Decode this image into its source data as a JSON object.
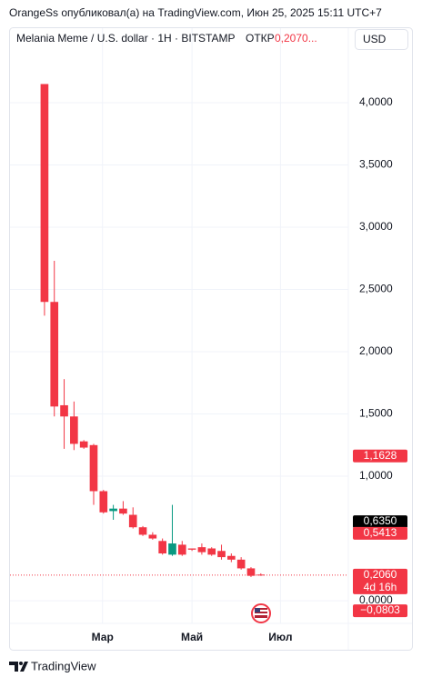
{
  "header": {
    "text": "OrangeSs опубликовал(а) на TradingView.com, Июн 25, 2025 15:11 UTC+7"
  },
  "symbol": {
    "name": "Melania Meme / U.S. dollar · 1H · BITSTAMP",
    "open_label": "ОТКР",
    "open_value": "0,2070..."
  },
  "currency": "USD",
  "footer": {
    "brand": "TradingView"
  },
  "chart_data": {
    "type": "candlestick",
    "up_color": "#089981",
    "down_color": "#f23645",
    "open": [
      4.15,
      2.4,
      1.57,
      1.48,
      1.28,
      1.25,
      0.88,
      0.72,
      0.74,
      0.69,
      0.59,
      0.53,
      0.48,
      0.37,
      0.45,
      0.42,
      0.43,
      0.42,
      0.4,
      0.36,
      0.33,
      0.26,
      0.21
    ],
    "high": [
      4.15,
      2.73,
      1.78,
      1.6,
      1.29,
      1.26,
      0.89,
      0.77,
      0.8,
      0.75,
      0.6,
      0.55,
      0.5,
      0.77,
      0.48,
      0.42,
      0.46,
      0.43,
      0.45,
      0.38,
      0.35,
      0.27,
      0.22
    ],
    "low": [
      2.29,
      1.48,
      1.22,
      1.21,
      1.22,
      0.77,
      0.7,
      0.65,
      0.69,
      0.58,
      0.52,
      0.49,
      0.37,
      0.36,
      0.36,
      0.4,
      0.37,
      0.36,
      0.33,
      0.31,
      0.25,
      0.19,
      0.2
    ],
    "close": [
      2.4,
      1.56,
      1.48,
      1.26,
      1.23,
      0.88,
      0.71,
      0.74,
      0.7,
      0.59,
      0.53,
      0.5,
      0.38,
      0.46,
      0.37,
      0.41,
      0.39,
      0.37,
      0.35,
      0.33,
      0.26,
      0.2,
      0.206
    ],
    "xlim": [
      -3.6,
      30.9
    ],
    "xticks": [
      {
        "value": 5.9,
        "label": "Мар"
      },
      {
        "value": 15,
        "label": "Май"
      },
      {
        "value": 24,
        "label": "Июл"
      }
    ],
    "ylim": [
      -0.182,
      4.606
    ],
    "yticks": [
      {
        "value": 0,
        "label": "0,0000"
      },
      {
        "value": 1,
        "label": "1,0000"
      },
      {
        "value": 1.5,
        "label": "1,5000"
      },
      {
        "value": 2,
        "label": "2,0000"
      },
      {
        "value": 2.5,
        "label": "2,5000"
      },
      {
        "value": 3,
        "label": "3,0000"
      },
      {
        "value": 3.5,
        "label": "3,5000"
      },
      {
        "value": 4,
        "label": "4,0000"
      }
    ],
    "grid": true,
    "price_labels": [
      {
        "value": 1.1628,
        "label": "1,1628",
        "color": "#f23645"
      },
      {
        "value": 0.635,
        "label": "0,6350",
        "color": "#000000"
      },
      {
        "value": 0.5413,
        "label": "0,5413",
        "color": "#f23645"
      },
      {
        "value": 0.206,
        "label": "0,2060",
        "color": "#f23645",
        "sub": "4d 16h"
      },
      {
        "value": -0.0803,
        "label": "−0,0803",
        "color": "#f23645"
      }
    ]
  }
}
